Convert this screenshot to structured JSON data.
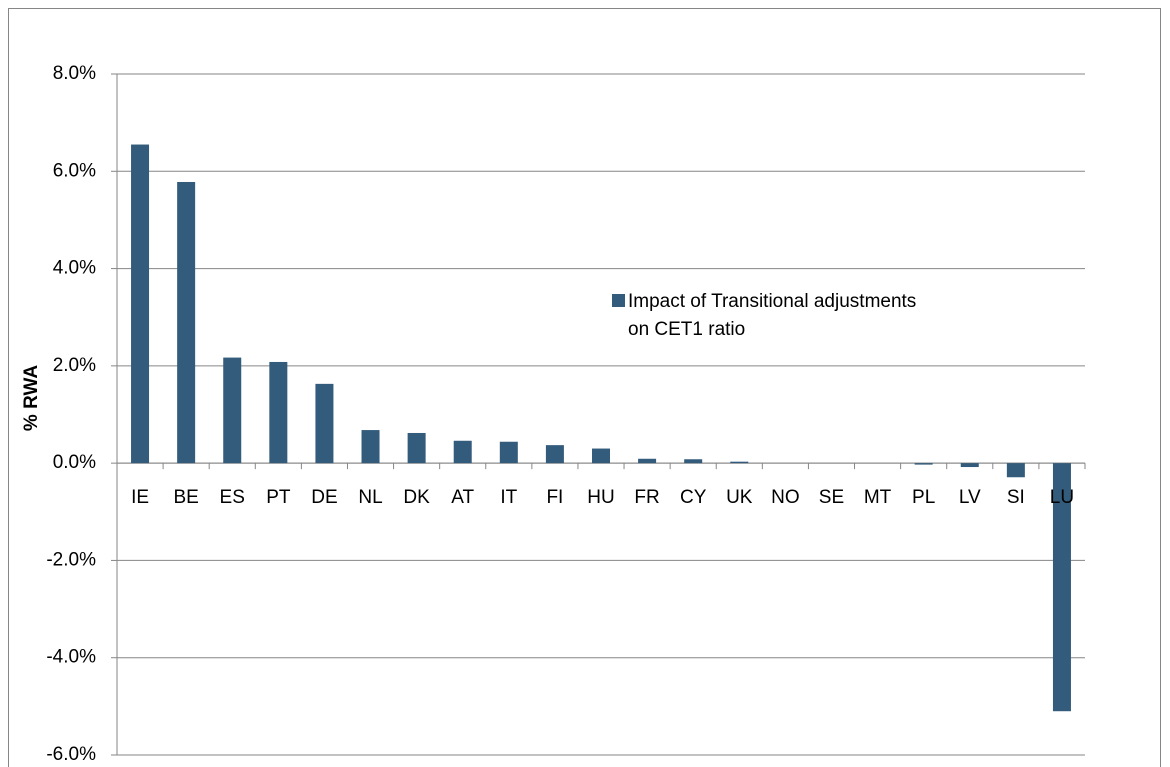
{
  "chart_data": {
    "type": "bar",
    "categories": [
      "IE",
      "BE",
      "ES",
      "PT",
      "DE",
      "NL",
      "DK",
      "AT",
      "IT",
      "FI",
      "HU",
      "FR",
      "CY",
      "UK",
      "NO",
      "SE",
      "MT",
      "PL",
      "LV",
      "SI",
      "LU"
    ],
    "series": [
      {
        "name": "Impact of Transitional adjustments on CET1 ratio",
        "color": "#335b7b",
        "values": [
          6.55,
          5.78,
          2.17,
          2.08,
          1.63,
          0.68,
          0.62,
          0.46,
          0.44,
          0.37,
          0.3,
          0.09,
          0.08,
          0.03,
          0,
          0,
          0,
          -0.03,
          -0.08,
          -0.29,
          -5.1
        ]
      }
    ],
    "y_label": "% RWA",
    "ylim": [
      -6,
      8
    ],
    "yticks": [
      {
        "value": -6,
        "label": "-6.0%"
      },
      {
        "value": -4,
        "label": "-4.0%"
      },
      {
        "value": -2,
        "label": "-2.0%"
      },
      {
        "value": 0,
        "label": "0.0%"
      },
      {
        "value": 2,
        "label": "2.0%"
      },
      {
        "value": 4,
        "label": "4.0%"
      },
      {
        "value": 6,
        "label": "6.0%"
      },
      {
        "value": 8,
        "label": "8.0%"
      }
    ],
    "grid": true
  }
}
